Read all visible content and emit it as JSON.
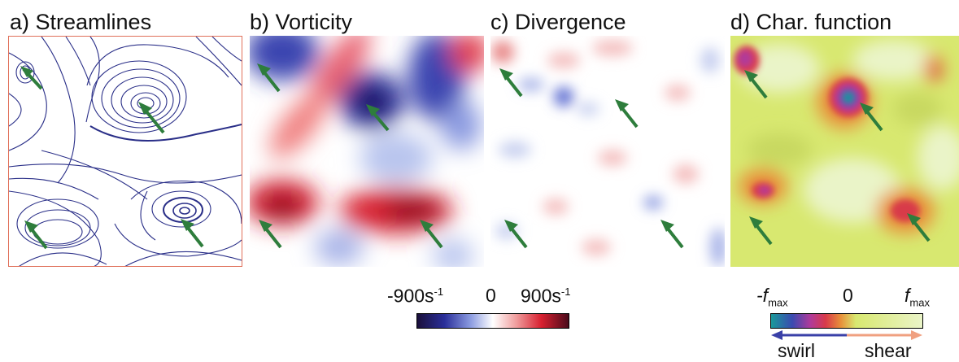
{
  "panels": [
    {
      "title": "a) Streamlines"
    },
    {
      "title": "b) Vorticity"
    },
    {
      "title": "c) Divergence"
    },
    {
      "title": "d) Char. function"
    }
  ],
  "vorticity_scale": {
    "min_label": "-900s",
    "min_exp": "-1",
    "mid_label": "0",
    "max_label": "900s",
    "max_exp": "-1",
    "colors": [
      "#1a0f3a",
      "#2a2f9a",
      "#8a9ae0",
      "#ffffff",
      "#f0a0a0",
      "#d82030",
      "#4a0a1a"
    ]
  },
  "char_scale": {
    "min_label": "-f",
    "min_sub": "max",
    "mid_label": "0",
    "max_label": "f",
    "max_sub": "max",
    "colors": [
      "#1a9a9a",
      "#3a4ab0",
      "#b03a9a",
      "#d83a4a",
      "#e8903a",
      "#d8e870",
      "#eaf4c8"
    ]
  },
  "direction": {
    "left_label": "swirl",
    "right_label": "shear",
    "left_color": "#3a40a8",
    "right_color": "#f0a080"
  },
  "arrow_color": "#2e7d3c"
}
